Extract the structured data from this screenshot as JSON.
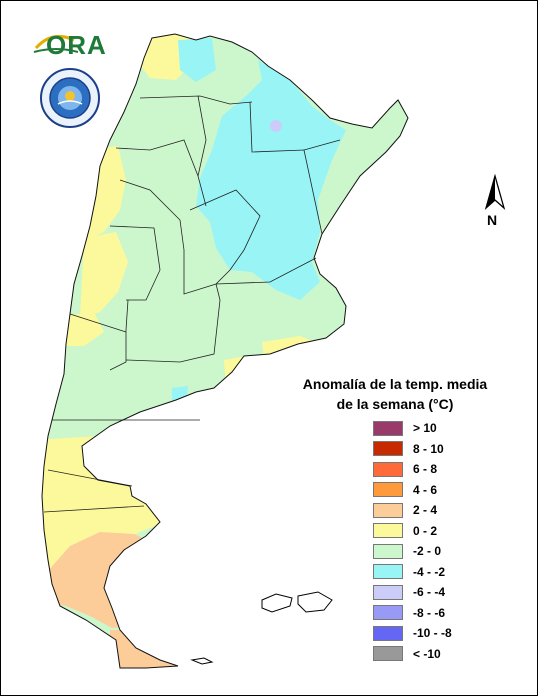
{
  "legend": {
    "title_line1": "Anomalía de la temp. media",
    "title_line2": "de la semana (°C)",
    "items": [
      {
        "label": "> 10",
        "color": "#9a3a6a"
      },
      {
        "label": "8 - 10",
        "color": "#c72a00"
      },
      {
        "label": "6 - 8",
        "color": "#ff6a3a"
      },
      {
        "label": "4 - 6",
        "color": "#ff9a3c"
      },
      {
        "label": "2 - 4",
        "color": "#fccc99"
      },
      {
        "label": "0 - 2",
        "color": "#fcf99d"
      },
      {
        "label": "-2 - 0",
        "color": "#ccf6cc"
      },
      {
        "label": "-4 - -2",
        "color": "#99f4f6"
      },
      {
        "label": "-6 - -4",
        "color": "#ccccf9"
      },
      {
        "label": "-8 - -6",
        "color": "#9999f6"
      },
      {
        "label": "-10 - -8",
        "color": "#6666f4"
      },
      {
        "label": "< -10",
        "color": "#999999"
      }
    ]
  },
  "logo_ora": {
    "text": "ORA"
  },
  "north_arrow": {
    "label": "N"
  }
}
